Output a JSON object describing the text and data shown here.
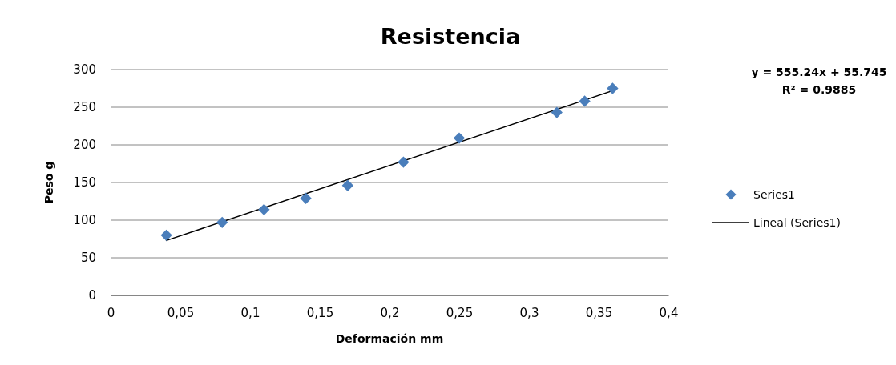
{
  "chart_data": {
    "type": "scatter",
    "title": "Resistencia",
    "xlabel": "Deformación mm",
    "ylabel": "Peso g",
    "xlim": [
      0,
      0.4
    ],
    "xticks": [
      0,
      {
        "value": 0.05,
        "label": "0,05"
      },
      {
        "value": 0.1,
        "label": "0,1"
      },
      {
        "value": 0.15,
        "label": "0,15"
      },
      {
        "value": 0.2,
        "label": "0,2"
      },
      {
        "value": 0.25,
        "label": "0,25"
      },
      {
        "value": 0.3,
        "label": "0,3"
      },
      {
        "value": 0.35,
        "label": "0,35"
      },
      {
        "value": 0.4,
        "label": "0,4"
      }
    ],
    "ylim": [
      0,
      300
    ],
    "yticks": [
      0,
      50,
      100,
      150,
      200,
      250,
      300
    ],
    "grid": "y",
    "legend": "right",
    "marker": "diamond",
    "annotations": [
      "y = 555.24x + 55.745",
      "R² = 0.9885"
    ],
    "series": [
      {
        "name": "Series1",
        "color": "#4a7ebb",
        "x": [
          0.04,
          0.08,
          0.11,
          0.14,
          0.17,
          0.21,
          0.25,
          0.32,
          0.34,
          0.36
        ],
        "values": [
          80,
          97,
          114,
          129,
          146,
          177,
          209,
          243,
          258,
          275
        ]
      },
      {
        "name": "Lineal (Series1)",
        "type": "line",
        "color": "#000000",
        "line_style": "solid",
        "marker": "none",
        "x": [
          0.04,
          0.36
        ],
        "values": [
          73,
          272
        ]
      }
    ]
  }
}
